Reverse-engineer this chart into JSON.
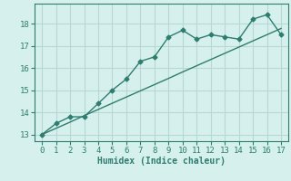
{
  "xlabel": "Humidex (Indice chaleur)",
  "x": [
    0,
    1,
    2,
    3,
    4,
    5,
    6,
    7,
    8,
    9,
    10,
    11,
    12,
    13,
    14,
    15,
    16,
    17
  ],
  "y_curve": [
    13.0,
    13.5,
    13.8,
    13.8,
    14.4,
    15.0,
    15.5,
    16.3,
    16.5,
    17.4,
    17.7,
    17.3,
    17.5,
    17.4,
    17.3,
    18.2,
    18.4,
    17.5
  ],
  "y_linear": [
    13.0,
    13.28,
    13.56,
    13.85,
    14.13,
    14.41,
    14.69,
    14.97,
    15.25,
    15.53,
    15.82,
    16.1,
    16.38,
    16.66,
    16.94,
    17.22,
    17.5,
    17.78
  ],
  "line_color": "#2e7d6e",
  "bg_color": "#d6f0ee",
  "grid_color": "#b8d8d4",
  "ylim": [
    12.7,
    18.9
  ],
  "xlim": [
    -0.5,
    17.5
  ],
  "yticks": [
    13,
    14,
    15,
    16,
    17,
    18
  ],
  "xticks": [
    0,
    1,
    2,
    3,
    4,
    5,
    6,
    7,
    8,
    9,
    10,
    11,
    12,
    13,
    14,
    15,
    16,
    17
  ],
  "marker": "D",
  "markersize": 2.5,
  "linewidth": 1.0,
  "tick_fontsize": 6.5,
  "xlabel_fontsize": 7.0
}
